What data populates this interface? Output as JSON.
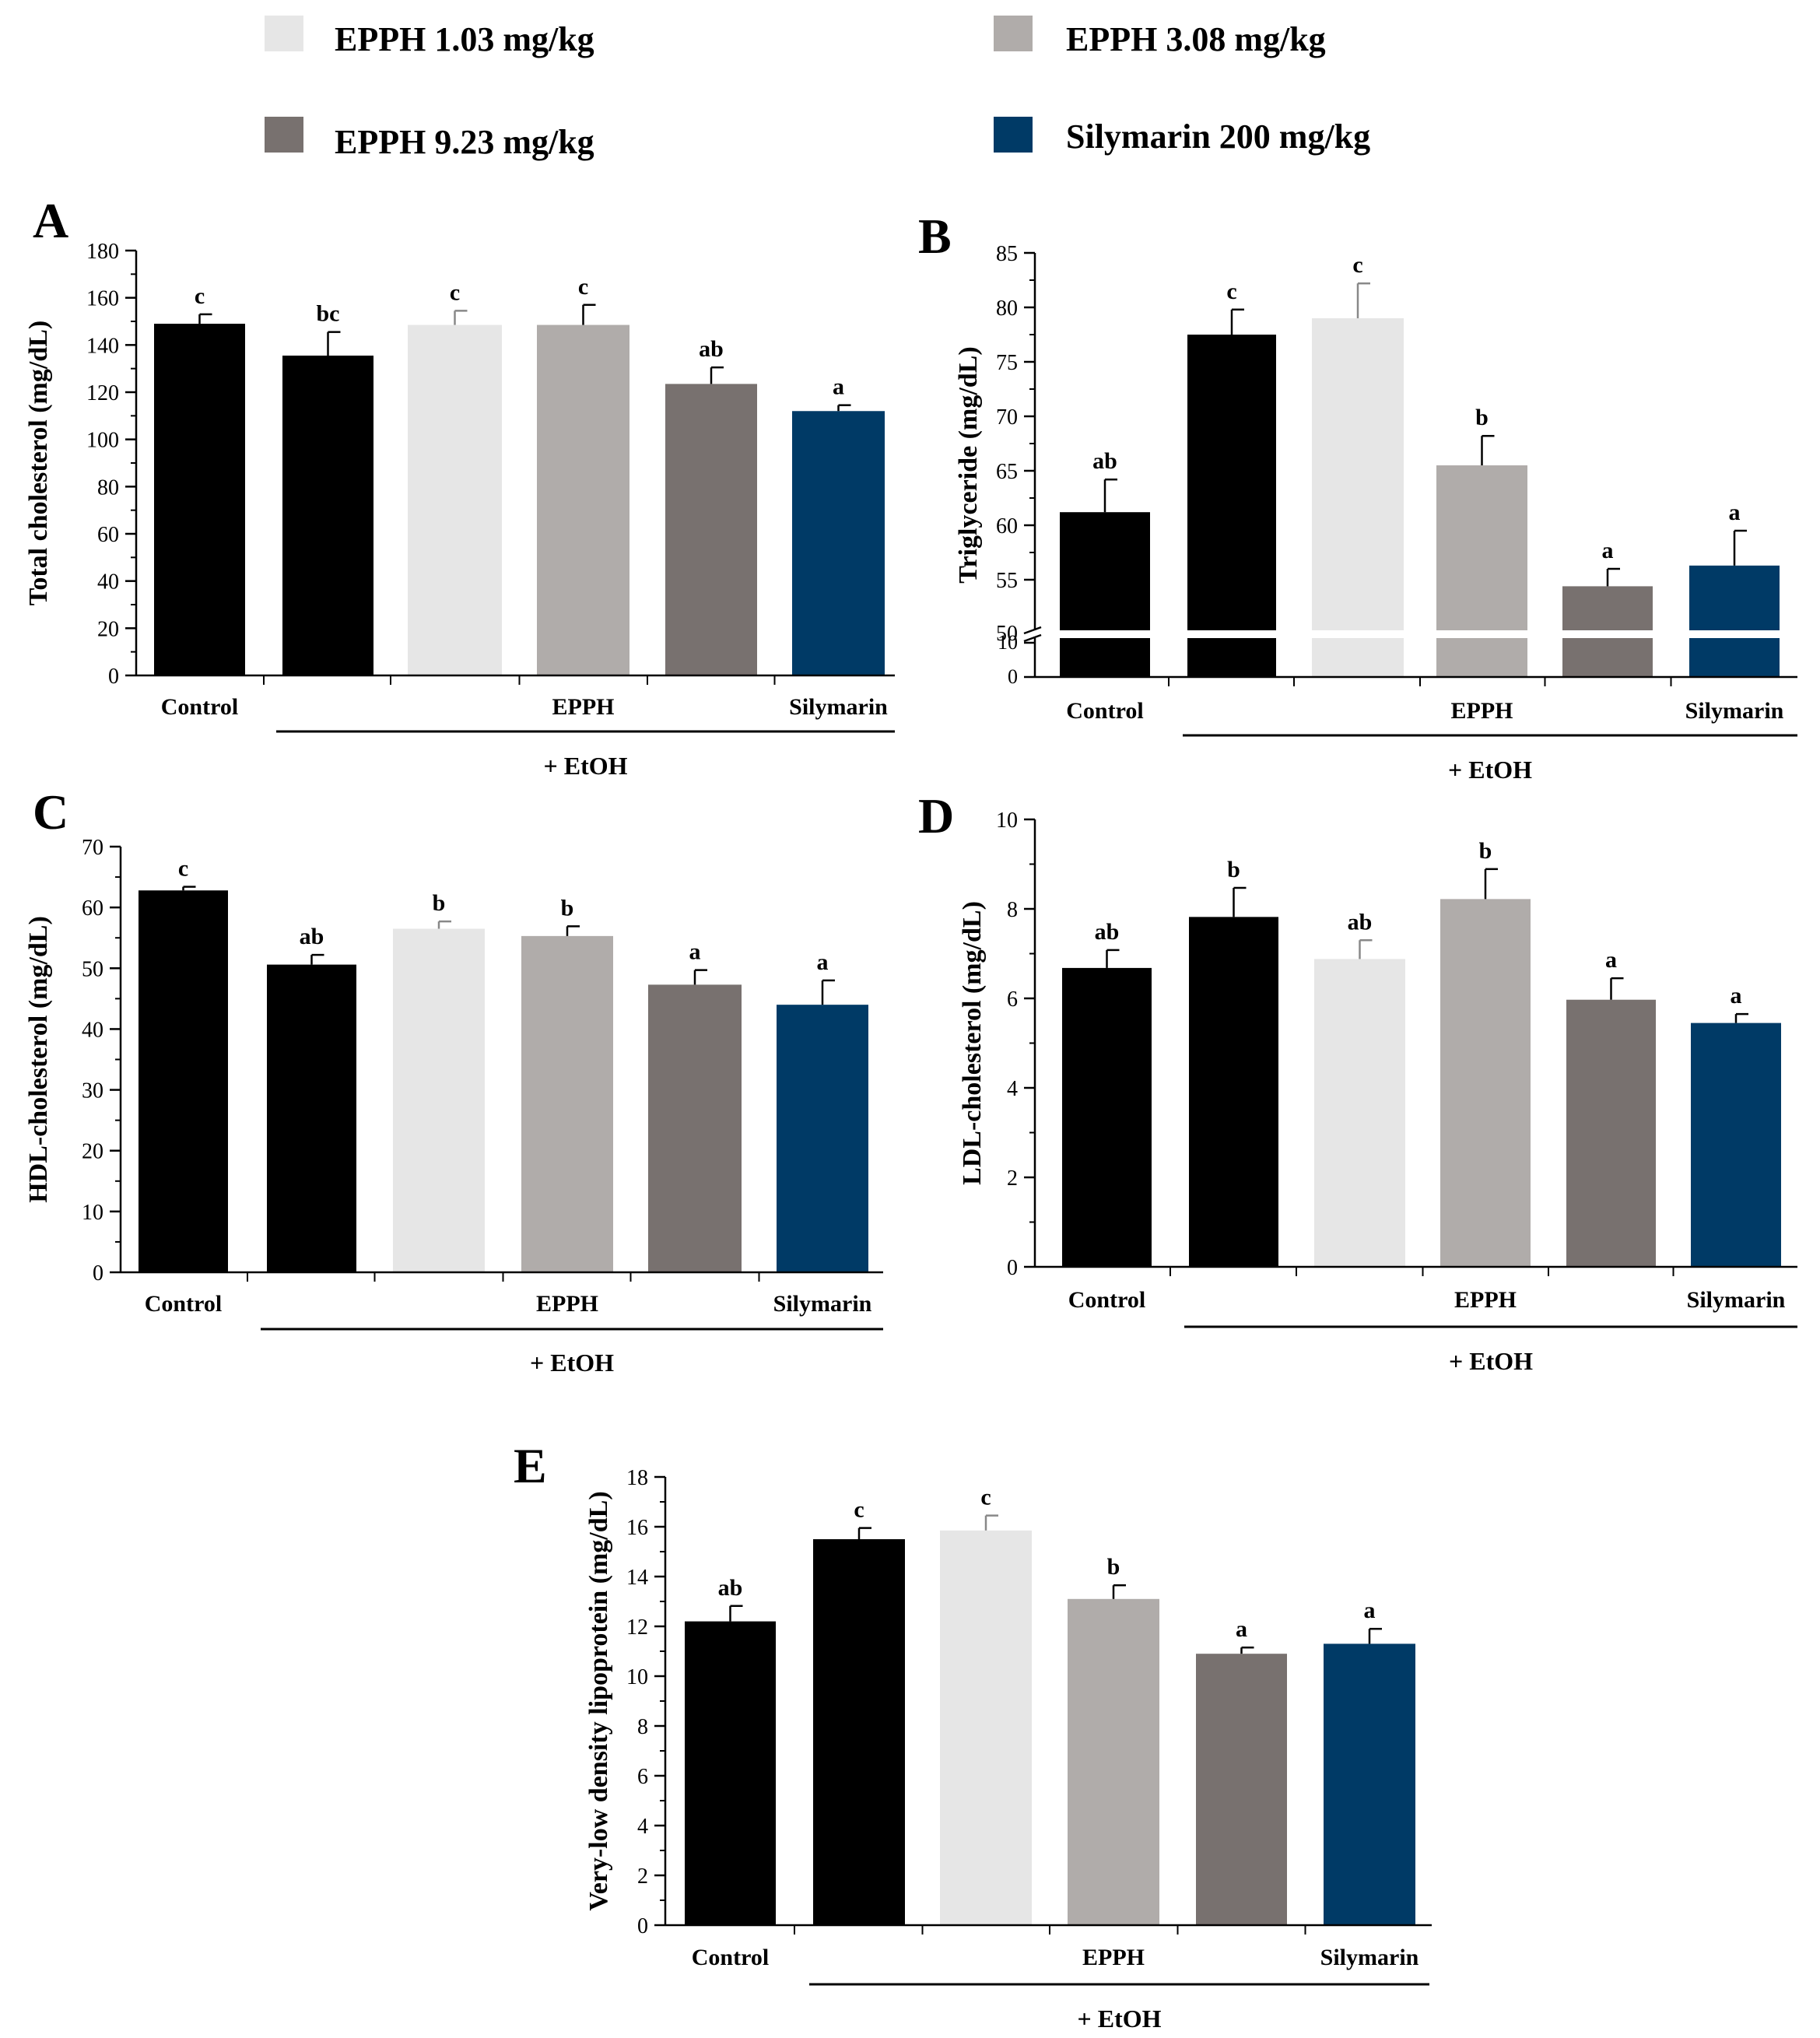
{
  "colors": {
    "black": "#000000",
    "light": "#e6e6e6",
    "midlight": "#b0acaa",
    "dark": "#78716f",
    "navy": "#003a66",
    "axis": "#000000"
  },
  "legend": [
    {
      "label": "EPPH 1.03 mg/kg",
      "color": "#e6e6e6"
    },
    {
      "label": "EPPH 3.08 mg/kg",
      "color": "#b0acaa"
    },
    {
      "label": "EPPH 9.23 mg/kg",
      "color": "#78716f"
    },
    {
      "label": "Silymarin 200 mg/kg",
      "color": "#003a66"
    }
  ],
  "group_labels": {
    "control": "Control",
    "epph": "EPPH",
    "silymarin": "Silymarin",
    "ethanol": "+ EtOH"
  },
  "chart_data": [
    {
      "panel": "A",
      "type": "bar",
      "ylabel": "Total cholesterol (mg/dL)",
      "ylim": [
        0,
        180
      ],
      "yticks": [
        0,
        20,
        40,
        60,
        80,
        100,
        120,
        140,
        160,
        180
      ],
      "ticklabels": [
        "0",
        "20",
        "40",
        "60",
        "80",
        "100",
        "120",
        "140",
        "160",
        "180"
      ],
      "values": [
        149,
        135.5,
        148.5,
        148.5,
        123.5,
        112
      ],
      "errors": [
        4,
        10,
        6,
        8.5,
        7,
        2.5
      ],
      "letters": [
        "c",
        "bc",
        "c",
        "c",
        "ab",
        "a"
      ]
    },
    {
      "panel": "B",
      "type": "bar",
      "ylabel": "Triglyceride (mg/dL)",
      "broken_axis": true,
      "ylim": [
        50,
        85
      ],
      "ylim_lower": [
        0,
        10
      ],
      "yticks": [
        55,
        60,
        65,
        70,
        75,
        80,
        85
      ],
      "ticklabels": [
        "55",
        "60",
        "65",
        "70",
        "75",
        "80",
        "85"
      ],
      "lower_ticks": [
        0,
        10
      ],
      "lower_ticklabels": [
        "0",
        "10"
      ],
      "break_tick": "50",
      "values": [
        61.2,
        77.5,
        79,
        65.5,
        54.4,
        56.3
      ],
      "errors": [
        3,
        2.3,
        3.2,
        2.7,
        1.6,
        3.2
      ],
      "letters": [
        "ab",
        "c",
        "c",
        "b",
        "a",
        "a"
      ]
    },
    {
      "panel": "C",
      "type": "bar",
      "ylabel": "HDL-cholesterol (mg/dL)",
      "ylim": [
        0,
        70
      ],
      "yticks": [
        0,
        10,
        20,
        30,
        40,
        50,
        60,
        70
      ],
      "ticklabels": [
        "0",
        "10",
        "20",
        "30",
        "40",
        "50",
        "60",
        "70"
      ],
      "values": [
        62.8,
        50.6,
        56.5,
        55.3,
        47.3,
        44
      ],
      "errors": [
        0.6,
        1.6,
        1.2,
        1.6,
        2.4,
        4
      ],
      "letters": [
        "c",
        "ab",
        "b",
        "b",
        "a",
        "a"
      ]
    },
    {
      "panel": "D",
      "type": "bar",
      "ylabel": "LDL-cholesterol (mg/dL)",
      "ylim": [
        0,
        10
      ],
      "yticks": [
        0,
        2,
        4,
        6,
        8,
        10
      ],
      "ticklabels": [
        "0",
        "2",
        "4",
        "6",
        "8",
        "10"
      ],
      "values": [
        6.68,
        7.82,
        6.88,
        8.22,
        5.97,
        5.45
      ],
      "errors": [
        0.4,
        0.65,
        0.42,
        0.67,
        0.48,
        0.2
      ],
      "letters": [
        "ab",
        "b",
        "ab",
        "b",
        "a",
        "a"
      ]
    },
    {
      "panel": "E",
      "type": "bar",
      "ylabel": "Very-low density lipoprotein (mg/dL)",
      "ylim": [
        0,
        18
      ],
      "yticks": [
        0,
        2,
        4,
        6,
        8,
        10,
        12,
        14,
        16,
        18
      ],
      "ticklabels": [
        "0",
        "2",
        "4",
        "6",
        "8",
        "10",
        "12",
        "14",
        "16",
        "18"
      ],
      "values": [
        12.2,
        15.5,
        15.85,
        13.1,
        10.9,
        11.3
      ],
      "errors": [
        0.62,
        0.45,
        0.6,
        0.55,
        0.25,
        0.6
      ],
      "letters": [
        "ab",
        "c",
        "c",
        "b",
        "a",
        "a"
      ]
    }
  ]
}
